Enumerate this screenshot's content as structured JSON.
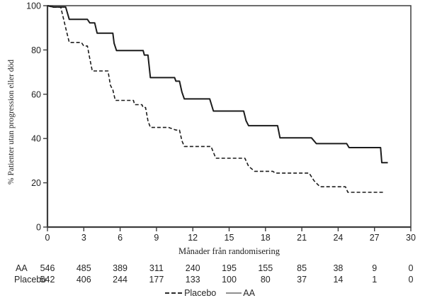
{
  "chart_data": {
    "type": "line",
    "subtype": "kaplan-meier-step-curves",
    "title": "",
    "xlabel": "Månader från randomisering",
    "ylabel": "% Patienter utan progression eller död",
    "xlim": [
      0,
      30
    ],
    "ylim": [
      0,
      100
    ],
    "x_ticks": [
      0,
      3,
      6,
      9,
      12,
      15,
      18,
      21,
      24,
      27,
      30
    ],
    "y_ticks": [
      0,
      20,
      40,
      60,
      80,
      100
    ],
    "grid": false,
    "legend_position": "bottom-center",
    "legend": [
      {
        "label": "Placebo",
        "style": "dashed"
      },
      {
        "label": "AA",
        "style": "solid"
      }
    ],
    "series": [
      {
        "name": "AA",
        "line_style": "solid",
        "points": [
          [
            0,
            100
          ],
          [
            0.5,
            99.4
          ],
          [
            1.5,
            99.4
          ],
          [
            1.8,
            93.8
          ],
          [
            3.3,
            93.8
          ],
          [
            3.5,
            92.2
          ],
          [
            3.9,
            92.2
          ],
          [
            4.1,
            87.6
          ],
          [
            5.4,
            87.6
          ],
          [
            5.5,
            83.0
          ],
          [
            5.7,
            79.7
          ],
          [
            7.9,
            79.7
          ],
          [
            8.0,
            77.7
          ],
          [
            8.3,
            77.7
          ],
          [
            8.5,
            67.5
          ],
          [
            10.5,
            67.5
          ],
          [
            10.6,
            65.9
          ],
          [
            10.9,
            65.9
          ],
          [
            11.1,
            61.0
          ],
          [
            11.3,
            57.9
          ],
          [
            13.4,
            57.9
          ],
          [
            13.7,
            52.4
          ],
          [
            16.2,
            52.4
          ],
          [
            16.4,
            48.0
          ],
          [
            16.6,
            45.8
          ],
          [
            19.0,
            45.8
          ],
          [
            19.2,
            40.3
          ],
          [
            21.8,
            40.3
          ],
          [
            22.2,
            37.7
          ],
          [
            24.7,
            37.7
          ],
          [
            24.9,
            35.9
          ],
          [
            27.5,
            35.9
          ],
          [
            27.6,
            29.1
          ],
          [
            28.1,
            29.1
          ]
        ]
      },
      {
        "name": "Placebo",
        "line_style": "dashed",
        "points": [
          [
            0,
            100
          ],
          [
            0.4,
            99.3
          ],
          [
            1.1,
            99.3
          ],
          [
            1.5,
            90.0
          ],
          [
            1.8,
            83.4
          ],
          [
            2.8,
            83.4
          ],
          [
            3.0,
            81.8
          ],
          [
            3.3,
            81.8
          ],
          [
            3.5,
            76.0
          ],
          [
            3.7,
            70.5
          ],
          [
            5.0,
            70.5
          ],
          [
            5.2,
            64.0
          ],
          [
            5.4,
            62.0
          ],
          [
            5.6,
            57.2
          ],
          [
            7.1,
            57.2
          ],
          [
            7.2,
            55.3
          ],
          [
            7.8,
            55.3
          ],
          [
            7.9,
            54.0
          ],
          [
            8.1,
            54.0
          ],
          [
            8.3,
            48.0
          ],
          [
            8.5,
            45.0
          ],
          [
            10.0,
            45.0
          ],
          [
            10.6,
            43.8
          ],
          [
            10.9,
            43.8
          ],
          [
            11.1,
            39.0
          ],
          [
            11.3,
            36.4
          ],
          [
            13.5,
            36.4
          ],
          [
            13.9,
            31.1
          ],
          [
            16.3,
            31.1
          ],
          [
            16.6,
            27.5
          ],
          [
            17.1,
            25.2
          ],
          [
            18.6,
            25.2
          ],
          [
            18.8,
            24.4
          ],
          [
            21.6,
            24.4
          ],
          [
            22.0,
            21.0
          ],
          [
            22.5,
            18.2
          ],
          [
            24.6,
            18.2
          ],
          [
            24.8,
            15.7
          ],
          [
            27.7,
            15.7
          ]
        ]
      }
    ]
  },
  "risk_table": {
    "timepoints": [
      0,
      3,
      6,
      9,
      12,
      15,
      18,
      21,
      24,
      27,
      30
    ],
    "rows": [
      {
        "label": "AA",
        "counts": [
          546,
          485,
          389,
          311,
          240,
          195,
          155,
          85,
          38,
          9,
          0
        ]
      },
      {
        "label": "Placebo",
        "counts": [
          542,
          406,
          244,
          177,
          133,
          100,
          80,
          37,
          14,
          1,
          0
        ]
      }
    ]
  },
  "colors": {
    "background": "#ffffff",
    "axis": "#3d3d3d",
    "curve": "#1c1c1c",
    "text": "#1f1f1f",
    "legend_solid_sample": "#8f8f8f"
  }
}
